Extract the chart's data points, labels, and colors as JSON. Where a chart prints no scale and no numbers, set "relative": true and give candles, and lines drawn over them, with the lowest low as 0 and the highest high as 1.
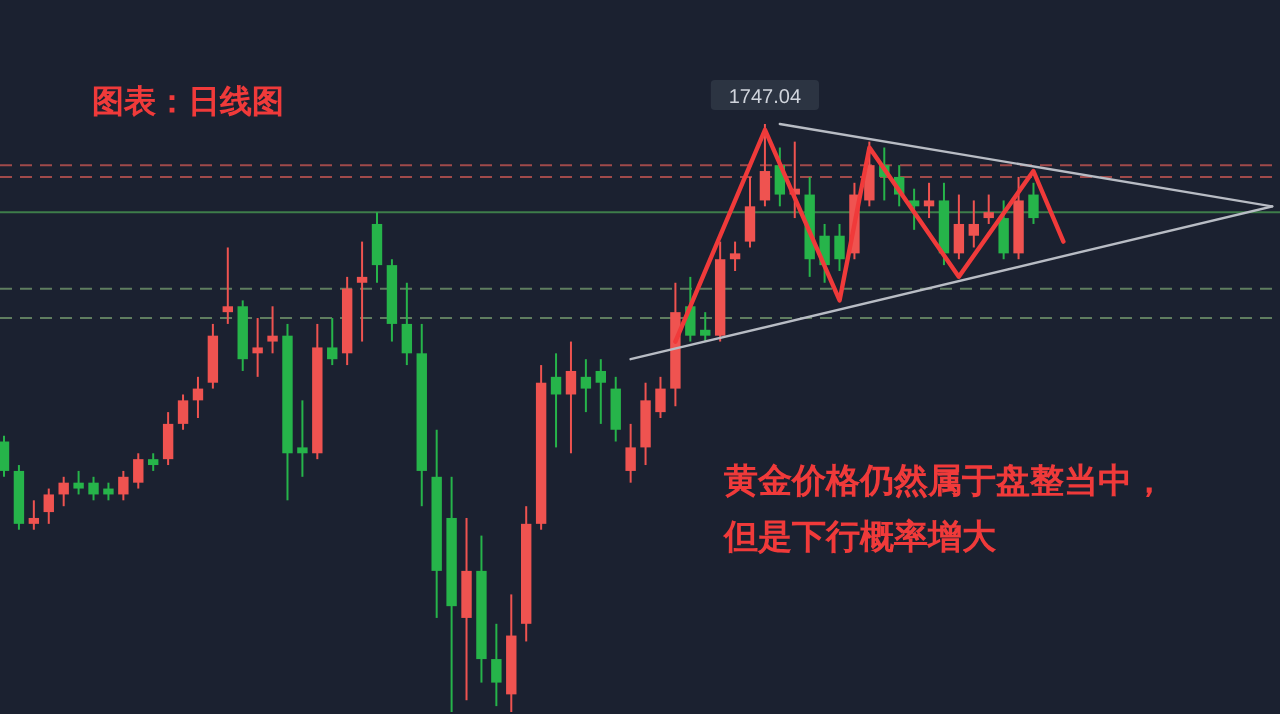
{
  "chart_data": {
    "type": "candlestick",
    "title": "图表：日线图",
    "relative": true,
    "categories": [
      null,
      null,
      null,
      null,
      null,
      null,
      null,
      null,
      null,
      null,
      null,
      null,
      null,
      null,
      null,
      null,
      null,
      null,
      null,
      null,
      null,
      null,
      null,
      null,
      null,
      null,
      null,
      null,
      null,
      null,
      null,
      null,
      null,
      null,
      null,
      null,
      null,
      null,
      null,
      null,
      null,
      null,
      null,
      null,
      null,
      null,
      null,
      null,
      null,
      null,
      null,
      null,
      null,
      null,
      null,
      null,
      null,
      null,
      null,
      null,
      null,
      null,
      null,
      null,
      null,
      null,
      null,
      null,
      null,
      null,
      null,
      null,
      null,
      null,
      null,
      null,
      null,
      null,
      null,
      null,
      null,
      null,
      null,
      null,
      null,
      null
    ],
    "ohlc": [
      [
        0.46,
        0.47,
        0.4,
        0.41
      ],
      [
        0.41,
        0.42,
        0.31,
        0.32
      ],
      [
        0.32,
        0.36,
        0.31,
        0.33
      ],
      [
        0.34,
        0.38,
        0.32,
        0.37
      ],
      [
        0.37,
        0.4,
        0.35,
        0.39
      ],
      [
        0.39,
        0.41,
        0.37,
        0.38
      ],
      [
        0.39,
        0.4,
        0.36,
        0.37
      ],
      [
        0.38,
        0.39,
        0.36,
        0.37
      ],
      [
        0.37,
        0.41,
        0.36,
        0.4
      ],
      [
        0.39,
        0.44,
        0.38,
        0.43
      ],
      [
        0.43,
        0.44,
        0.41,
        0.42
      ],
      [
        0.43,
        0.51,
        0.42,
        0.49
      ],
      [
        0.49,
        0.54,
        0.48,
        0.53
      ],
      [
        0.53,
        0.57,
        0.5,
        0.55
      ],
      [
        0.56,
        0.66,
        0.55,
        0.64
      ],
      [
        0.68,
        0.79,
        0.66,
        0.69
      ],
      [
        0.69,
        0.7,
        0.58,
        0.6
      ],
      [
        0.61,
        0.67,
        0.57,
        0.62
      ],
      [
        0.63,
        0.69,
        0.61,
        0.64
      ],
      [
        0.64,
        0.66,
        0.36,
        0.44
      ],
      [
        0.45,
        0.53,
        0.4,
        0.44
      ],
      [
        0.44,
        0.66,
        0.43,
        0.62
      ],
      [
        0.62,
        0.67,
        0.59,
        0.6
      ],
      [
        0.61,
        0.74,
        0.59,
        0.72
      ],
      [
        0.73,
        0.8,
        0.63,
        0.74
      ],
      [
        0.83,
        0.85,
        0.73,
        0.76
      ],
      [
        0.76,
        0.77,
        0.63,
        0.66
      ],
      [
        0.66,
        0.73,
        0.59,
        0.61
      ],
      [
        0.61,
        0.66,
        0.35,
        0.41
      ],
      [
        0.4,
        0.48,
        0.16,
        0.24
      ],
      [
        0.33,
        0.4,
        0.0,
        0.18
      ],
      [
        0.16,
        0.33,
        0.02,
        0.24
      ],
      [
        0.24,
        0.3,
        0.05,
        0.09
      ],
      [
        0.09,
        0.15,
        0.01,
        0.05
      ],
      [
        0.03,
        0.2,
        0.0,
        0.13
      ],
      [
        0.15,
        0.35,
        0.12,
        0.32
      ],
      [
        0.32,
        0.59,
        0.31,
        0.56
      ],
      [
        0.57,
        0.61,
        0.45,
        0.54
      ],
      [
        0.54,
        0.63,
        0.44,
        0.58
      ],
      [
        0.57,
        0.6,
        0.51,
        0.55
      ],
      [
        0.58,
        0.6,
        0.49,
        0.56
      ],
      [
        0.55,
        0.57,
        0.46,
        0.48
      ],
      [
        0.41,
        0.49,
        0.39,
        0.45
      ],
      [
        0.45,
        0.56,
        0.42,
        0.53
      ],
      [
        0.51,
        0.57,
        0.5,
        0.55
      ],
      [
        0.55,
        0.73,
        0.52,
        0.68
      ],
      [
        0.69,
        0.74,
        0.63,
        0.64
      ],
      [
        0.65,
        0.68,
        0.63,
        0.64
      ],
      [
        0.64,
        0.8,
        0.63,
        0.77
      ],
      [
        0.77,
        0.8,
        0.75,
        0.78
      ],
      [
        0.8,
        0.91,
        0.79,
        0.86
      ],
      [
        0.87,
        1.0,
        0.86,
        0.92
      ],
      [
        0.93,
        0.96,
        0.86,
        0.88
      ],
      [
        0.88,
        0.97,
        0.84,
        0.89
      ],
      [
        0.88,
        0.91,
        0.74,
        0.77
      ],
      [
        0.81,
        0.83,
        0.73,
        0.76
      ],
      [
        0.81,
        0.83,
        0.75,
        0.77
      ],
      [
        0.78,
        0.9,
        0.77,
        0.88
      ],
      [
        0.87,
        0.97,
        0.86,
        0.93
      ],
      [
        0.93,
        0.96,
        0.87,
        0.91
      ],
      [
        0.91,
        0.93,
        0.86,
        0.88
      ],
      [
        0.87,
        0.89,
        0.82,
        0.86
      ],
      [
        0.86,
        0.9,
        0.84,
        0.87
      ],
      [
        0.87,
        0.9,
        0.76,
        0.78
      ],
      [
        0.78,
        0.88,
        0.77,
        0.83
      ],
      [
        0.81,
        0.87,
        0.79,
        0.83
      ],
      [
        0.84,
        0.88,
        0.83,
        0.85
      ],
      [
        0.84,
        0.87,
        0.77,
        0.78
      ],
      [
        0.78,
        0.91,
        0.77,
        0.87
      ],
      [
        0.88,
        0.9,
        0.83,
        0.84
      ],
      null,
      null,
      null,
      null,
      null,
      null,
      null,
      null,
      null,
      null,
      null,
      null,
      null,
      null,
      null,
      null
    ],
    "series": [
      {
        "type": "line",
        "color": "#b8bcc4",
        "values": [
          null,
          null,
          null,
          null,
          null,
          null,
          null,
          null,
          null,
          null,
          null,
          null,
          null,
          null,
          null,
          null,
          null,
          null,
          null,
          null,
          null,
          null,
          null,
          null,
          null,
          null,
          null,
          null,
          null,
          null,
          null,
          null,
          null,
          null,
          null,
          null,
          null,
          null,
          null,
          null,
          null,
          null,
          null,
          null,
          null,
          null,
          null,
          null,
          null,
          null,
          null,
          null,
          1.0,
          null,
          null,
          null,
          null,
          null,
          null,
          null,
          null,
          null,
          null,
          null,
          null,
          null,
          null,
          null,
          null,
          null,
          null,
          null,
          null,
          null,
          null,
          null,
          null,
          null,
          null,
          null,
          null,
          null,
          null,
          null,
          null,
          0.86
        ]
      },
      {
        "type": "line",
        "color": "#b8bcc4",
        "values": [
          null,
          null,
          null,
          null,
          null,
          null,
          null,
          null,
          null,
          null,
          null,
          null,
          null,
          null,
          null,
          null,
          null,
          null,
          null,
          null,
          null,
          null,
          null,
          null,
          null,
          null,
          null,
          null,
          null,
          null,
          null,
          null,
          null,
          null,
          null,
          null,
          null,
          null,
          null,
          null,
          null,
          null,
          0.6,
          null,
          null,
          null,
          null,
          null,
          null,
          null,
          null,
          null,
          null,
          null,
          null,
          null,
          null,
          null,
          null,
          null,
          null,
          null,
          null,
          null,
          null,
          null,
          null,
          null,
          null,
          null,
          null,
          null,
          null,
          null,
          null,
          null,
          null,
          null,
          null,
          null,
          null,
          null,
          null,
          null,
          null,
          0.86
        ]
      },
      {
        "type": "line",
        "color": "#f03a3a",
        "values": [
          null,
          null,
          null,
          null,
          null,
          null,
          null,
          null,
          null,
          null,
          null,
          null,
          null,
          null,
          null,
          null,
          null,
          null,
          null,
          null,
          null,
          null,
          null,
          null,
          null,
          null,
          null,
          null,
          null,
          null,
          null,
          null,
          null,
          null,
          null,
          null,
          null,
          null,
          null,
          null,
          null,
          null,
          null,
          null,
          null,
          0.63,
          null,
          null,
          null,
          null,
          null,
          0.99,
          null,
          null,
          null,
          null,
          0.7,
          null,
          0.96,
          null,
          null,
          null,
          null,
          null,
          0.74,
          null,
          null,
          null,
          null,
          0.92,
          null,
          0.8,
          null,
          null,
          null,
          null,
          null,
          null,
          null,
          null,
          null,
          null,
          null,
          null,
          null,
          null
        ]
      }
    ],
    "ref_lines": [
      {
        "axis": "y",
        "value": 0.93,
        "color": "#a04a4a",
        "line_style": "dashed"
      },
      {
        "axis": "y",
        "value": 0.91,
        "color": "#a04a4a",
        "line_style": "dashed"
      },
      {
        "axis": "y",
        "value": 0.85,
        "color": "#3e7d4a",
        "line_style": "solid"
      },
      {
        "axis": "y",
        "value": 0.72,
        "color": "#5f7d5f",
        "line_style": "dashed"
      },
      {
        "axis": "y",
        "value": 0.67,
        "color": "#5f7d5f",
        "line_style": "dashed"
      }
    ],
    "annotations": [
      {
        "text": "1747.04",
        "y": 1.0
      },
      "黄金价格仍然属于盘整当中，",
      "但是下行概率增大"
    ]
  }
}
